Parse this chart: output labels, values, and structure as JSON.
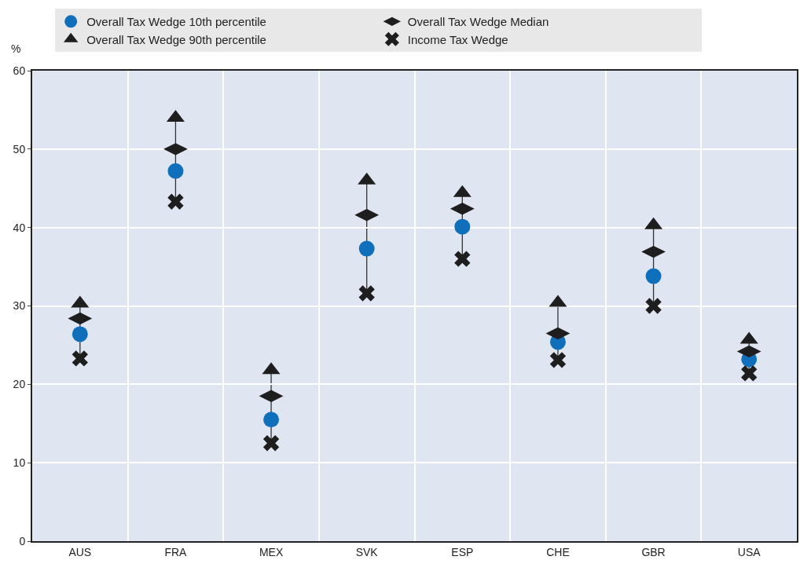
{
  "chart_data": {
    "type": "scatter",
    "ylabel": "%",
    "categories": [
      "AUS",
      "FRA",
      "MEX",
      "SVK",
      "ESP",
      "CHE",
      "GBR",
      "USA"
    ],
    "ylim": [
      0,
      60
    ],
    "yticks": [
      0,
      10,
      20,
      30,
      40,
      50,
      60
    ],
    "grid": true,
    "legend": "top",
    "series": [
      {
        "name": "Overall Tax Wedge 10th percentile",
        "color": "#0f6fba",
        "marker": "circle",
        "values": [
          26.4,
          47.2,
          15.5,
          37.3,
          40.1,
          25.4,
          33.8,
          23.2
        ]
      },
      {
        "name": "Overall Tax Wedge Median",
        "color": "#1e1e1e",
        "marker": "diamond",
        "values": [
          28.4,
          50.0,
          18.5,
          41.6,
          42.4,
          26.5,
          36.9,
          24.2
        ]
      },
      {
        "name": "Overall Tax Wedge 90th percentile",
        "color": "#1e1e1e",
        "marker": "triangle",
        "values": [
          30.3,
          54.0,
          21.8,
          46.0,
          44.4,
          30.4,
          40.3,
          25.7
        ]
      },
      {
        "name": "Income Tax Wedge",
        "color": "#1e1e1e",
        "marker": "cross",
        "values": [
          23.3,
          43.3,
          12.5,
          31.6,
          36.0,
          23.1,
          30.0,
          21.4
        ]
      }
    ]
  }
}
